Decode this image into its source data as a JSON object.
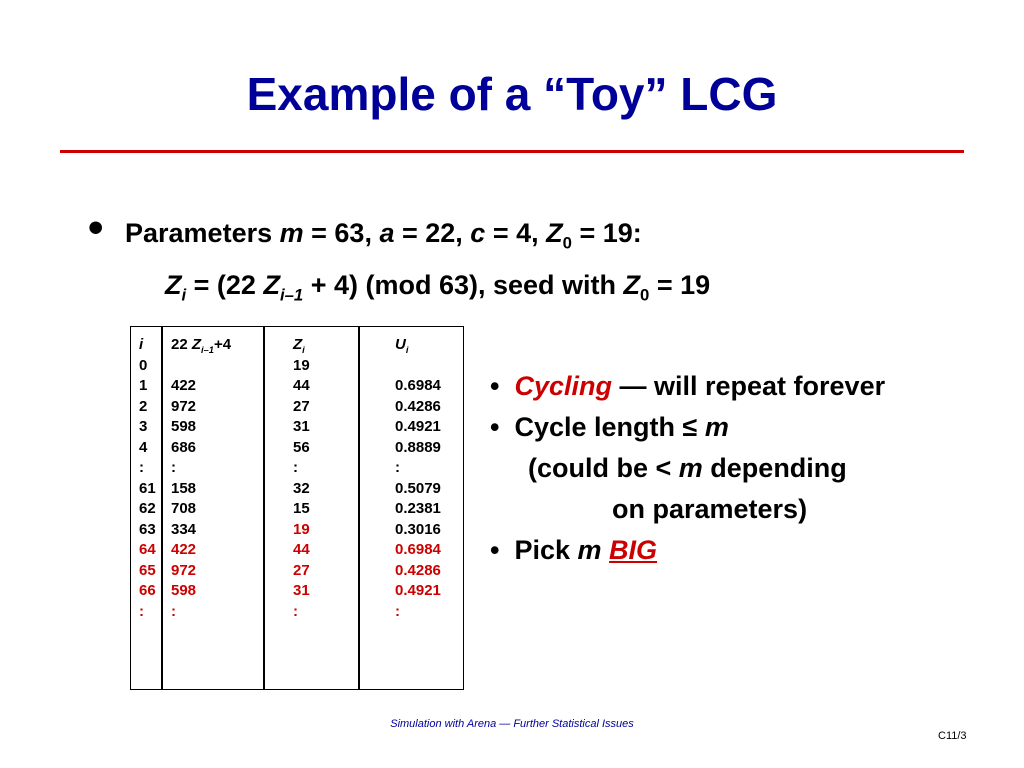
{
  "slide": {
    "title": "Example of a “Toy” LCG",
    "params": {
      "label": "Parameters",
      "m": "m",
      "eq1": " = 63, ",
      "a": "a",
      "eq2": " = 22, ",
      "c": "c",
      "eq3": " = 4, ",
      "Z": "Z",
      "sub0": "0",
      "eq4": " = 19:"
    },
    "formula": {
      "Z": "Z",
      "i": "i",
      "eq_open": " = (22 ",
      "Z2": "Z",
      "sub_im1": "i–1",
      "rest": " + 4) (mod 63), seed with ",
      "Z3": "Z",
      "sub0": "0",
      "eq_end": " = 19"
    },
    "table": {
      "headers": {
        "i": "i",
        "col2_pre": "22 ",
        "col2_Z": "Z",
        "col2_sub": "i–1",
        "col2_post": "+4",
        "col3_Z": "Z",
        "col3_sub": "i",
        "col4_U": "U",
        "col4_sub": "i"
      },
      "rows": [
        {
          "i": "0",
          "prod": "",
          "z": "19",
          "u": "",
          "red": false,
          "zred": false
        },
        {
          "i": "1",
          "prod": "422",
          "z": "44",
          "u": "0.6984",
          "red": false,
          "zred": false
        },
        {
          "i": "2",
          "prod": "972",
          "z": "27",
          "u": "0.4286",
          "red": false,
          "zred": false
        },
        {
          "i": "3",
          "prod": "598",
          "z": "31",
          "u": "0.4921",
          "red": false,
          "zred": false
        },
        {
          "i": "4",
          "prod": "686",
          "z": "56",
          "u": "0.8889",
          "red": false,
          "zred": false
        },
        {
          "i": ":",
          "prod": ":",
          "z": ":",
          "u": ":",
          "red": false,
          "zred": false
        },
        {
          "i": "61",
          "prod": "158",
          "z": "32",
          "u": "0.5079",
          "red": false,
          "zred": false
        },
        {
          "i": "62",
          "prod": "708",
          "z": "15",
          "u": "0.2381",
          "red": false,
          "zred": false
        },
        {
          "i": "63",
          "prod": "334",
          "z": "19",
          "u": "0.3016",
          "red": false,
          "zred": true
        },
        {
          "i": "64",
          "prod": "422",
          "z": "44",
          "u": "0.6984",
          "red": true,
          "zred": true
        },
        {
          "i": "65",
          "prod": "972",
          "z": "27",
          "u": "0.4286",
          "red": true,
          "zred": true
        },
        {
          "i": "66",
          "prod": "598",
          "z": "31",
          "u": "0.4921",
          "red": true,
          "zred": true
        },
        {
          "i": ":",
          "prod": ":",
          "z": ":",
          "u": ":",
          "red": true,
          "zred": true
        }
      ]
    },
    "right": {
      "b1_em": "Cycling",
      "b1_rest": " — will repeat forever",
      "b2_pre": "Cycle length ≤ ",
      "b2_m": "m",
      "b2_l2_pre": "(could be < ",
      "b2_l2_m": "m",
      "b2_l2_post": " depending",
      "b2_l3": "on parameters)",
      "b3_pre": "Pick ",
      "b3_m": "m",
      "b3_big": "BIG",
      "bullet_char": "•"
    },
    "footer": "Simulation with Arena — Further Statistical Issues",
    "page": "C11/3",
    "colors": {
      "title": "#000099",
      "accent": "#cc0000"
    }
  }
}
